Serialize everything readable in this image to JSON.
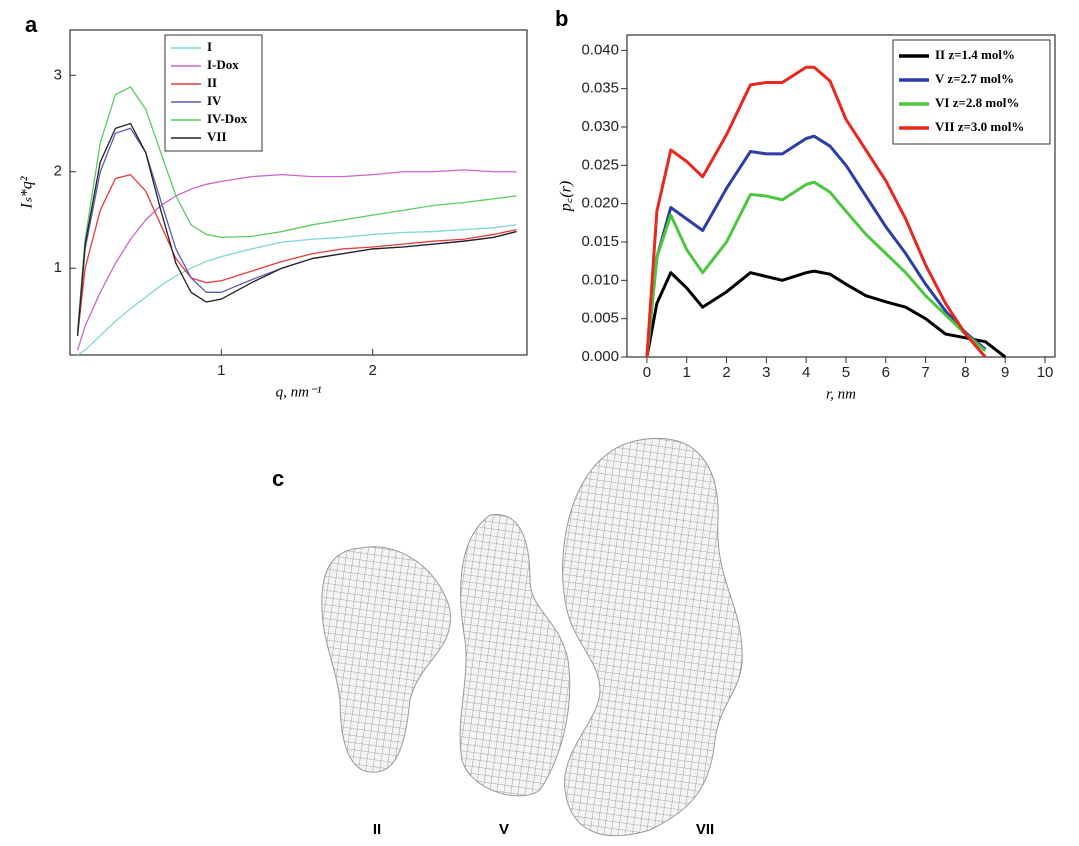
{
  "chart_data": [
    {
      "type": "line",
      "panel": "a",
      "xlabel": "q, nm⁻¹",
      "ylabel": "Iₛ*q²",
      "x": [
        0.05,
        0.1,
        0.2,
        0.3,
        0.4,
        0.5,
        0.6,
        0.7,
        0.8,
        0.9,
        1.0,
        1.2,
        1.4,
        1.6,
        1.8,
        2.0,
        2.2,
        2.4,
        2.6,
        2.8,
        2.95
      ],
      "series": [
        {
          "name": "I",
          "color": "#7fd6d6",
          "values": [
            0.1,
            0.15,
            0.3,
            0.45,
            0.58,
            0.7,
            0.82,
            0.92,
            1.0,
            1.07,
            1.12,
            1.2,
            1.27,
            1.3,
            1.32,
            1.35,
            1.37,
            1.38,
            1.4,
            1.42,
            1.45
          ]
        },
        {
          "name": "I-Dox",
          "color": "#cc66cc",
          "values": [
            0.15,
            0.4,
            0.75,
            1.05,
            1.3,
            1.5,
            1.65,
            1.75,
            1.82,
            1.87,
            1.9,
            1.95,
            1.97,
            1.95,
            1.95,
            1.97,
            2.0,
            2.0,
            2.02,
            2.0,
            2.0
          ]
        },
        {
          "name": "II",
          "color": "#e83a3a",
          "values": [
            0.3,
            1.0,
            1.6,
            1.93,
            1.97,
            1.8,
            1.45,
            1.1,
            0.9,
            0.85,
            0.87,
            0.97,
            1.07,
            1.15,
            1.2,
            1.22,
            1.25,
            1.28,
            1.3,
            1.35,
            1.4
          ]
        },
        {
          "name": "IV",
          "color": "#5a5ab8",
          "values": [
            0.3,
            1.2,
            2.0,
            2.4,
            2.45,
            2.2,
            1.7,
            1.2,
            0.9,
            0.75,
            0.75,
            0.88,
            1.0,
            1.1,
            1.15,
            1.2,
            1.22,
            1.25,
            1.28,
            1.32,
            1.38
          ]
        },
        {
          "name": "IV-Dox",
          "color": "#5ccc5c",
          "values": [
            0.35,
            1.3,
            2.3,
            2.8,
            2.88,
            2.65,
            2.2,
            1.75,
            1.45,
            1.35,
            1.32,
            1.33,
            1.38,
            1.45,
            1.5,
            1.55,
            1.6,
            1.65,
            1.68,
            1.72,
            1.75
          ]
        },
        {
          "name": "VII",
          "color": "#222222",
          "values": [
            0.3,
            1.25,
            2.1,
            2.45,
            2.5,
            2.2,
            1.6,
            1.05,
            0.75,
            0.65,
            0.68,
            0.85,
            1.0,
            1.1,
            1.15,
            1.2,
            1.22,
            1.25,
            1.28,
            1.32,
            1.38
          ]
        }
      ],
      "xlim": [
        0,
        3.02
      ],
      "xticks": [
        1,
        2
      ],
      "ylim": [
        0.1,
        3.47
      ],
      "yticks": [
        1,
        2,
        3
      ],
      "grid": false,
      "legend": "upper left",
      "line_width": 1.3
    },
    {
      "type": "line",
      "panel": "b",
      "xlabel": "r, nm",
      "ylabel": "p꜀(r)",
      "x": [
        0,
        0.25,
        0.6,
        1,
        1.4,
        2,
        2.6,
        3,
        3.4,
        4,
        4.2,
        4.6,
        5,
        5.5,
        6,
        6.5,
        7,
        7.5,
        8,
        8.5,
        9
      ],
      "series": [
        {
          "name": "II  z=1.4 mol%",
          "color": "#000000",
          "values": [
            0,
            0.007,
            0.011,
            0.009,
            0.0065,
            0.0085,
            0.011,
            0.0105,
            0.01,
            0.011,
            0.0112,
            0.0108,
            0.0095,
            0.008,
            0.0072,
            0.0065,
            0.005,
            0.003,
            0.0025,
            0.002,
            0
          ]
        },
        {
          "name": "V   z=2.7 mol%",
          "color": "#2b3ea8",
          "values": [
            0,
            0.013,
            0.0195,
            0.018,
            0.0165,
            0.022,
            0.0268,
            0.0265,
            0.0265,
            0.0285,
            0.0288,
            0.0275,
            0.025,
            0.021,
            0.017,
            0.0135,
            0.0095,
            0.006,
            0.0032,
            0.001,
            null
          ]
        },
        {
          "name": "VI  z=2.8 mol%",
          "color": "#4cc63c",
          "values": [
            0,
            0.013,
            0.0185,
            0.014,
            0.011,
            0.015,
            0.0212,
            0.021,
            0.0205,
            0.0225,
            0.0228,
            0.0215,
            0.019,
            0.016,
            0.0135,
            0.011,
            0.008,
            0.0055,
            0.003,
            0.0008,
            null
          ]
        },
        {
          "name": "VII z=3.0 mol%",
          "color": "#e8281e",
          "values": [
            0,
            0.019,
            0.027,
            0.0255,
            0.0235,
            0.029,
            0.0355,
            0.0358,
            0.0358,
            0.0378,
            0.0378,
            0.036,
            0.031,
            0.027,
            0.023,
            0.018,
            0.012,
            0.007,
            0.003,
            0,
            null
          ]
        }
      ],
      "xlim": [
        -0.5,
        10.25
      ],
      "xticks": [
        0,
        1,
        2,
        3,
        4,
        5,
        6,
        7,
        8,
        9,
        10
      ],
      "ylim": [
        0,
        0.042
      ],
      "yticks": [
        {
          "value": 0,
          "label": "0.000"
        },
        0.005,
        {
          "value": 0.01,
          "label": "0.010"
        },
        0.015,
        {
          "value": 0.02,
          "label": "0.020"
        },
        0.025,
        {
          "value": 0.03,
          "label": "0.030"
        },
        0.035,
        {
          "value": 0.04,
          "label": "0.040"
        }
      ],
      "grid": false,
      "legend": "upper right",
      "line_width": 3
    }
  ],
  "panel_c": {
    "label": "c",
    "models": [
      "II",
      "V",
      "VII"
    ]
  }
}
